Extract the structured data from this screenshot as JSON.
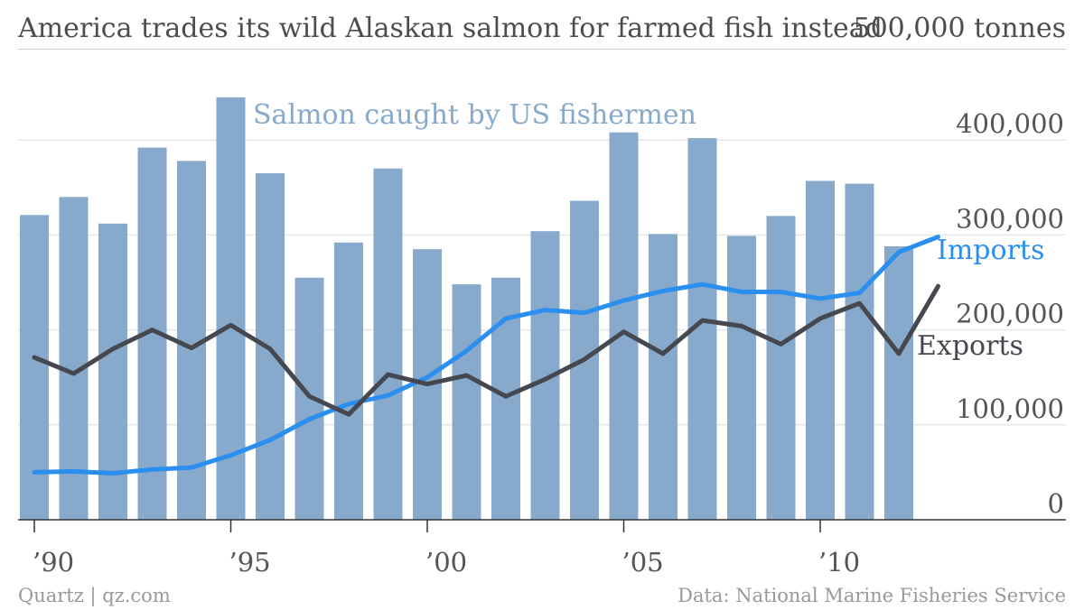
{
  "header": {
    "title": "America trades its wild Alaskan salmon for farmed fish instead",
    "unit_label": "500,000 tonnes"
  },
  "footer": {
    "credit": "Quartz | qz.com",
    "source": "Data: National Marine Fisheries Service"
  },
  "colors": {
    "bars": "#87a9cc",
    "imports": "#2b8ff0",
    "exports": "#45484f",
    "grid": "#e6e6e6",
    "axis_text": "#555555",
    "bar_label": "#87a9cc"
  },
  "chart_data": {
    "type": "bar",
    "title": "America trades its wild Alaskan salmon for farmed fish instead",
    "ylabel": "tonnes",
    "ylim": [
      0,
      500000
    ],
    "yticks": [
      {
        "value": 0,
        "label": "0"
      },
      {
        "value": 100000,
        "label": "100,000"
      },
      {
        "value": 200000,
        "label": "200,000"
      },
      {
        "value": 300000,
        "label": "300,000"
      },
      {
        "value": 400000,
        "label": "400,000"
      }
    ],
    "xticks": [
      {
        "year": 1990,
        "label": "’90"
      },
      {
        "year": 1995,
        "label": "’95"
      },
      {
        "year": 2000,
        "label": "’00"
      },
      {
        "year": 2005,
        "label": "’05"
      },
      {
        "year": 2010,
        "label": "’10"
      }
    ],
    "x": [
      1990,
      1991,
      1992,
      1993,
      1994,
      1995,
      1996,
      1997,
      1998,
      1999,
      2000,
      2001,
      2002,
      2003,
      2004,
      2005,
      2006,
      2007,
      2008,
      2009,
      2010,
      2011,
      2012,
      2013
    ],
    "series": [
      {
        "name": "Salmon caught by US fishermen",
        "kind": "bar",
        "values": [
          321000,
          340000,
          312000,
          392000,
          378000,
          445000,
          365000,
          255000,
          292000,
          370000,
          285000,
          248000,
          255000,
          304000,
          336000,
          408000,
          301000,
          402000,
          299000,
          320000,
          357000,
          354000,
          288000,
          null
        ]
      },
      {
        "name": "Imports",
        "kind": "line",
        "values": [
          50000,
          51000,
          49000,
          53000,
          55000,
          68000,
          84000,
          106000,
          122000,
          131000,
          150000,
          178000,
          212000,
          221000,
          218000,
          231000,
          241000,
          248000,
          240000,
          240000,
          233000,
          239000,
          282000,
          298000
        ]
      },
      {
        "name": "Exports",
        "kind": "line",
        "values": [
          171000,
          154000,
          180000,
          200000,
          181000,
          205000,
          180000,
          130000,
          111000,
          153000,
          143000,
          152000,
          130000,
          148000,
          169000,
          198000,
          175000,
          210000,
          204000,
          185000,
          212000,
          228000,
          175000,
          246000
        ]
      }
    ],
    "grid": true,
    "legend": "direct labels"
  }
}
